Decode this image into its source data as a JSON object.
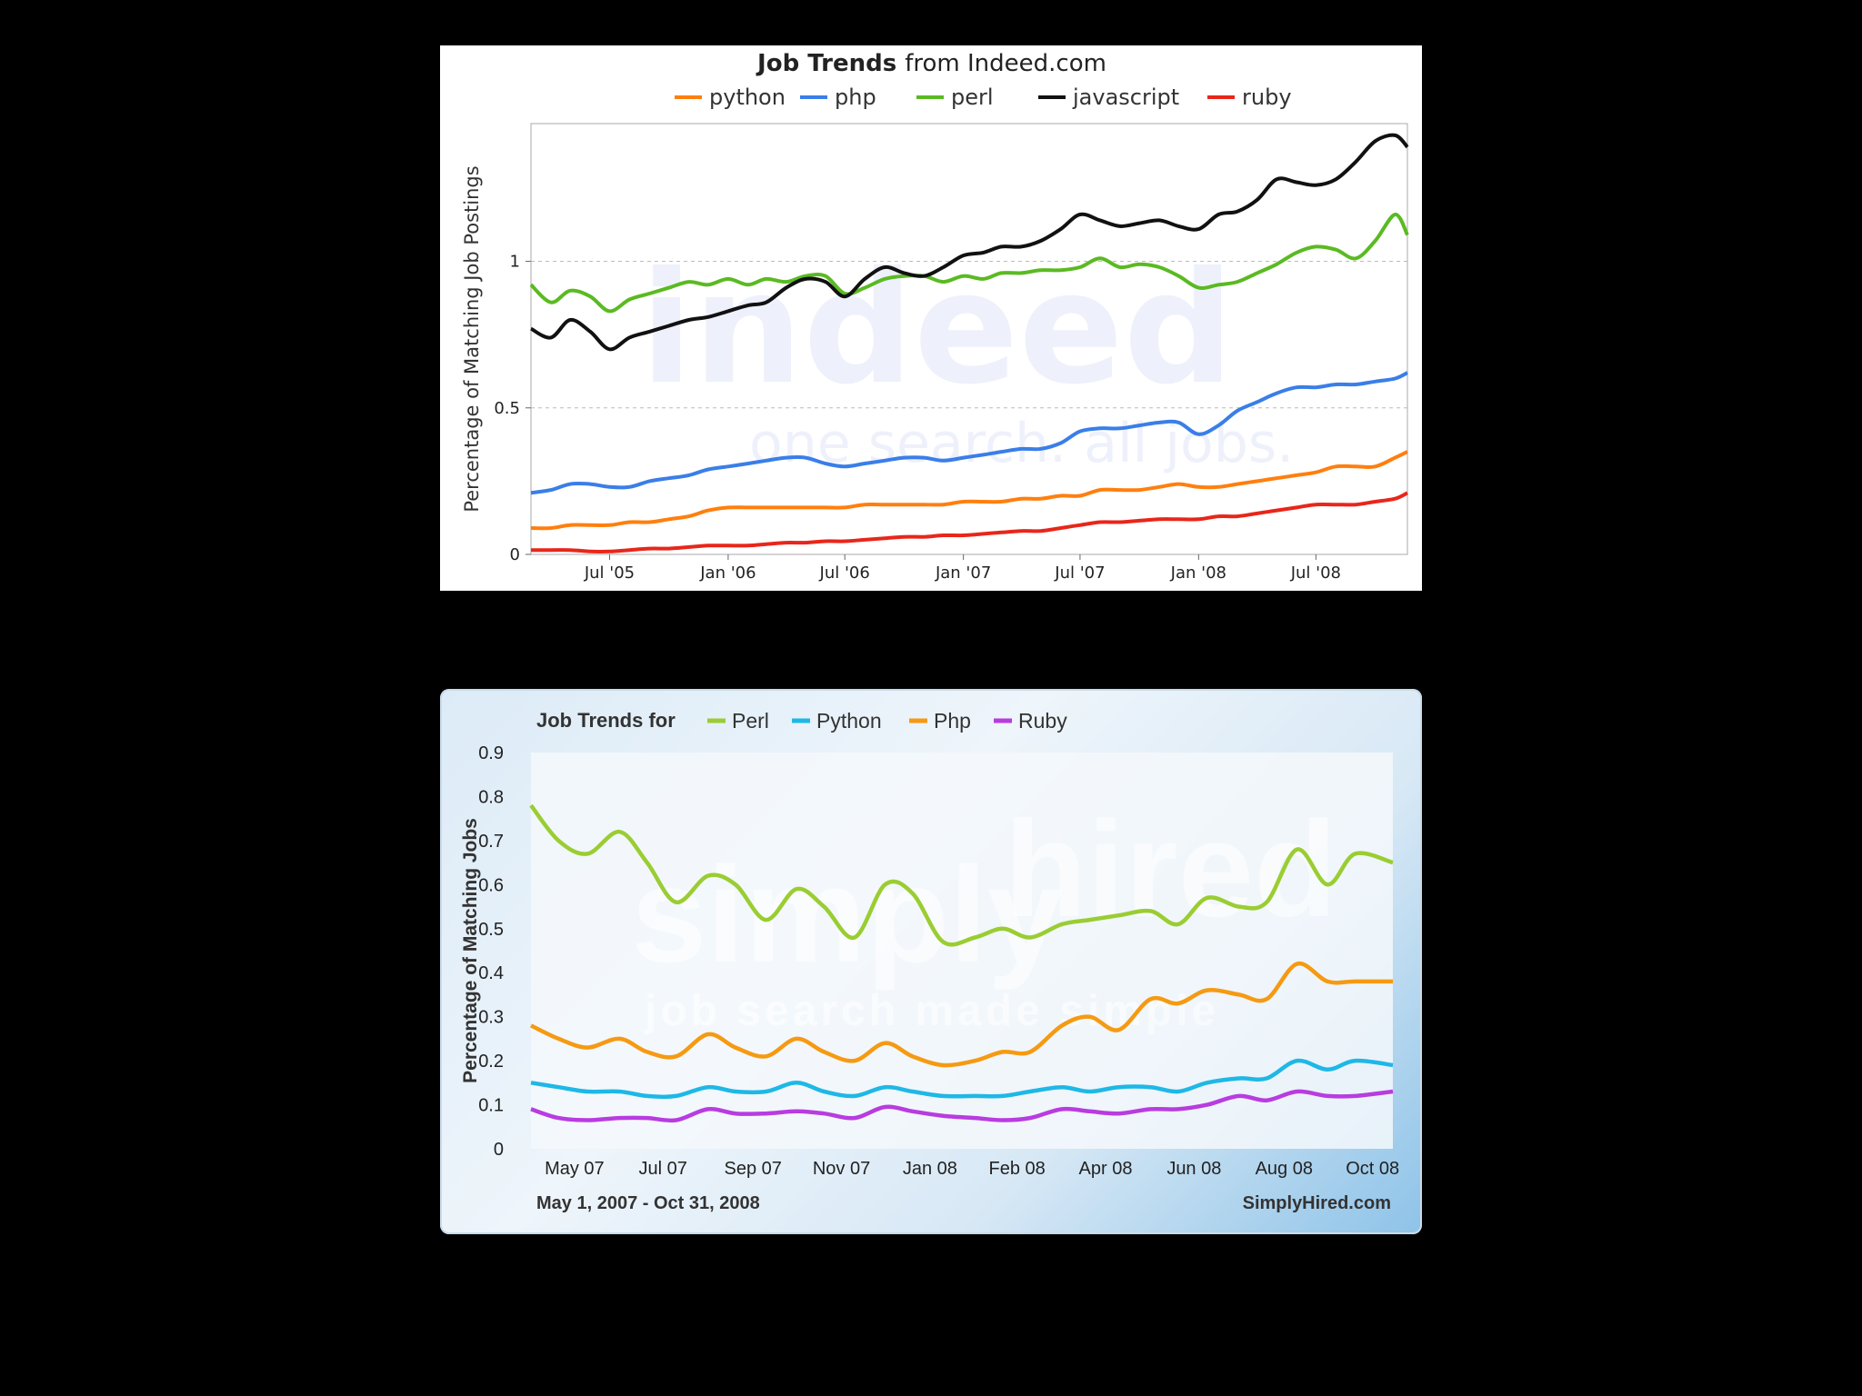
{
  "chart_data": [
    {
      "type": "line",
      "title_bold": "Job Trends",
      "title_rest": "from Indeed.com",
      "ylabel": "Percentage of Matching Job Postings",
      "xlabel": "",
      "ylim": [
        0,
        1.47
      ],
      "xlim": [
        "2005-03-01",
        "2008-11-20"
      ],
      "grid": true,
      "legend": "top",
      "x_ticks": [
        {
          "date": "2005-07-01",
          "label": "Jul '05"
        },
        {
          "date": "2006-01-01",
          "label": "Jan '06"
        },
        {
          "date": "2006-07-01",
          "label": "Jul '06"
        },
        {
          "date": "2007-01-01",
          "label": "Jan '07"
        },
        {
          "date": "2007-07-01",
          "label": "Jul '07"
        },
        {
          "date": "2008-01-01",
          "label": "Jan '08"
        },
        {
          "date": "2008-07-01",
          "label": "Jul '08"
        }
      ],
      "y_ticks": [
        {
          "value": 0,
          "label": "0"
        },
        {
          "value": 0.5,
          "label": "0.5"
        },
        {
          "value": 1,
          "label": "1"
        }
      ],
      "watermark": [
        "indeed",
        "one search. all jobs."
      ],
      "x": [
        "2005-03-01",
        "2005-04-01",
        "2005-05-01",
        "2005-06-01",
        "2005-07-01",
        "2005-08-01",
        "2005-09-01",
        "2005-10-01",
        "2005-11-01",
        "2005-12-01",
        "2006-01-01",
        "2006-02-01",
        "2006-03-01",
        "2006-04-01",
        "2006-05-01",
        "2006-06-01",
        "2006-07-01",
        "2006-08-01",
        "2006-09-01",
        "2006-10-01",
        "2006-11-01",
        "2006-12-01",
        "2007-01-01",
        "2007-02-01",
        "2007-03-01",
        "2007-04-01",
        "2007-05-01",
        "2007-06-01",
        "2007-07-01",
        "2007-08-01",
        "2007-09-01",
        "2007-10-01",
        "2007-11-01",
        "2007-12-01",
        "2008-01-01",
        "2008-02-01",
        "2008-03-01",
        "2008-04-01",
        "2008-05-01",
        "2008-06-01",
        "2008-07-01",
        "2008-08-01",
        "2008-09-01",
        "2008-10-01",
        "2008-11-01",
        "2008-11-20"
      ],
      "series": [
        {
          "name": "python",
          "color": "#ff7f0e",
          "values": [
            0.09,
            0.09,
            0.1,
            0.1,
            0.1,
            0.11,
            0.11,
            0.12,
            0.13,
            0.15,
            0.16,
            0.16,
            0.16,
            0.16,
            0.16,
            0.16,
            0.16,
            0.17,
            0.17,
            0.17,
            0.17,
            0.17,
            0.18,
            0.18,
            0.18,
            0.19,
            0.19,
            0.2,
            0.2,
            0.22,
            0.22,
            0.22,
            0.23,
            0.24,
            0.23,
            0.23,
            0.24,
            0.25,
            0.26,
            0.27,
            0.28,
            0.3,
            0.3,
            0.3,
            0.33,
            0.35
          ]
        },
        {
          "name": "php",
          "color": "#3a7ee8",
          "values": [
            0.21,
            0.22,
            0.24,
            0.24,
            0.23,
            0.23,
            0.25,
            0.26,
            0.27,
            0.29,
            0.3,
            0.31,
            0.32,
            0.33,
            0.33,
            0.31,
            0.3,
            0.31,
            0.32,
            0.33,
            0.33,
            0.32,
            0.33,
            0.34,
            0.35,
            0.36,
            0.36,
            0.38,
            0.42,
            0.43,
            0.43,
            0.44,
            0.45,
            0.45,
            0.41,
            0.44,
            0.49,
            0.52,
            0.55,
            0.57,
            0.57,
            0.58,
            0.58,
            0.59,
            0.6,
            0.62
          ]
        },
        {
          "name": "perl",
          "color": "#5aba22",
          "values": [
            0.92,
            0.86,
            0.9,
            0.88,
            0.83,
            0.87,
            0.89,
            0.91,
            0.93,
            0.92,
            0.94,
            0.92,
            0.94,
            0.93,
            0.95,
            0.95,
            0.89,
            0.91,
            0.94,
            0.95,
            0.95,
            0.93,
            0.95,
            0.94,
            0.96,
            0.96,
            0.97,
            0.97,
            0.98,
            1.01,
            0.98,
            0.99,
            0.98,
            0.95,
            0.91,
            0.92,
            0.93,
            0.96,
            0.99,
            1.03,
            1.05,
            1.04,
            1.01,
            1.07,
            1.16,
            1.09
          ]
        },
        {
          "name": "javascript",
          "color": "#111111",
          "values": [
            0.77,
            0.74,
            0.8,
            0.76,
            0.7,
            0.74,
            0.76,
            0.78,
            0.8,
            0.81,
            0.83,
            0.85,
            0.86,
            0.91,
            0.94,
            0.93,
            0.88,
            0.94,
            0.98,
            0.96,
            0.95,
            0.98,
            1.02,
            1.03,
            1.05,
            1.05,
            1.07,
            1.11,
            1.16,
            1.14,
            1.12,
            1.13,
            1.14,
            1.12,
            1.11,
            1.16,
            1.17,
            1.21,
            1.28,
            1.27,
            1.26,
            1.28,
            1.34,
            1.41,
            1.43,
            1.39
          ]
        },
        {
          "name": "ruby",
          "color": "#e8261a",
          "values": [
            0.015,
            0.015,
            0.015,
            0.01,
            0.01,
            0.015,
            0.02,
            0.02,
            0.025,
            0.03,
            0.03,
            0.03,
            0.035,
            0.04,
            0.04,
            0.045,
            0.045,
            0.05,
            0.055,
            0.06,
            0.06,
            0.065,
            0.065,
            0.07,
            0.075,
            0.08,
            0.08,
            0.09,
            0.1,
            0.11,
            0.11,
            0.115,
            0.12,
            0.12,
            0.12,
            0.13,
            0.13,
            0.14,
            0.15,
            0.16,
            0.17,
            0.17,
            0.17,
            0.18,
            0.19,
            0.21
          ]
        }
      ]
    },
    {
      "type": "line",
      "title": "Job Trends for",
      "ylabel": "Percentage of Matching Jobs",
      "xlabel": "",
      "ylim": [
        0,
        0.9
      ],
      "xlim": [
        "2007-04-01",
        "2008-11-15"
      ],
      "grid": false,
      "legend": "top",
      "x_ticks": [
        {
          "date": "2007-05-01",
          "label": "May 07"
        },
        {
          "date": "2007-07-01",
          "label": "Jul 07"
        },
        {
          "date": "2007-09-01",
          "label": "Sep 07"
        },
        {
          "date": "2007-11-01",
          "label": "Nov 07"
        },
        {
          "date": "2008-01-01",
          "label": "Jan 08"
        },
        {
          "date": "2008-03-01",
          "label": "Feb 08"
        },
        {
          "date": "2008-05-01",
          "label": "Apr 08"
        },
        {
          "date": "2008-07-01",
          "label": "Jun 08"
        },
        {
          "date": "2008-09-01",
          "label": "Aug 08"
        },
        {
          "date": "2008-11-01",
          "label": "Oct 08"
        }
      ],
      "y_ticks": [
        {
          "value": 0,
          "label": "0"
        },
        {
          "value": 0.1,
          "label": "0.1"
        },
        {
          "value": 0.2,
          "label": "0.2"
        },
        {
          "value": 0.3,
          "label": "0.3"
        },
        {
          "value": 0.4,
          "label": "0.4"
        },
        {
          "value": 0.5,
          "label": "0.5"
        },
        {
          "value": 0.6,
          "label": "0.6"
        },
        {
          "value": 0.7,
          "label": "0.7"
        },
        {
          "value": 0.8,
          "label": "0.8"
        },
        {
          "value": 0.9,
          "label": "0.9"
        }
      ],
      "date_range": "May 1, 2007 - Oct 31, 2008",
      "source": "SimplyHired.com",
      "watermark": [
        "simply",
        "hired",
        "job search made simple"
      ],
      "x": [
        "2007-04-01",
        "2007-04-20",
        "2007-05-10",
        "2007-06-01",
        "2007-06-20",
        "2007-07-10",
        "2007-08-01",
        "2007-08-20",
        "2007-09-10",
        "2007-10-01",
        "2007-10-20",
        "2007-11-10",
        "2007-12-01",
        "2007-12-20",
        "2008-01-10",
        "2008-02-01",
        "2008-02-20",
        "2008-03-10",
        "2008-04-01",
        "2008-04-20",
        "2008-05-10",
        "2008-06-01",
        "2008-06-20",
        "2008-07-10",
        "2008-08-01",
        "2008-08-20",
        "2008-09-10",
        "2008-10-01",
        "2008-10-20",
        "2008-11-15"
      ],
      "series": [
        {
          "name": "Perl",
          "color": "#9acd32",
          "values": [
            0.78,
            0.7,
            0.67,
            0.72,
            0.65,
            0.56,
            0.62,
            0.6,
            0.52,
            0.59,
            0.55,
            0.48,
            0.6,
            0.58,
            0.47,
            0.48,
            0.5,
            0.48,
            0.51,
            0.52,
            0.53,
            0.54,
            0.51,
            0.57,
            0.55,
            0.56,
            0.68,
            0.6,
            0.67,
            0.65
          ]
        },
        {
          "name": "Python",
          "color": "#1eb8e6",
          "values": [
            0.15,
            0.14,
            0.13,
            0.13,
            0.12,
            0.12,
            0.14,
            0.13,
            0.13,
            0.15,
            0.13,
            0.12,
            0.14,
            0.13,
            0.12,
            0.12,
            0.12,
            0.13,
            0.14,
            0.13,
            0.14,
            0.14,
            0.13,
            0.15,
            0.16,
            0.16,
            0.2,
            0.18,
            0.2,
            0.19
          ]
        },
        {
          "name": "Php",
          "color": "#f59a12",
          "values": [
            0.28,
            0.25,
            0.23,
            0.25,
            0.22,
            0.21,
            0.26,
            0.23,
            0.21,
            0.25,
            0.22,
            0.2,
            0.24,
            0.21,
            0.19,
            0.2,
            0.22,
            0.22,
            0.28,
            0.3,
            0.27,
            0.34,
            0.33,
            0.36,
            0.35,
            0.34,
            0.42,
            0.38,
            0.38,
            0.38
          ]
        },
        {
          "name": "Ruby",
          "color": "#b83ce0",
          "values": [
            0.09,
            0.07,
            0.065,
            0.07,
            0.07,
            0.065,
            0.09,
            0.08,
            0.08,
            0.085,
            0.08,
            0.07,
            0.095,
            0.085,
            0.075,
            0.07,
            0.065,
            0.07,
            0.09,
            0.085,
            0.08,
            0.09,
            0.09,
            0.1,
            0.12,
            0.11,
            0.13,
            0.12,
            0.12,
            0.13
          ]
        }
      ]
    }
  ]
}
